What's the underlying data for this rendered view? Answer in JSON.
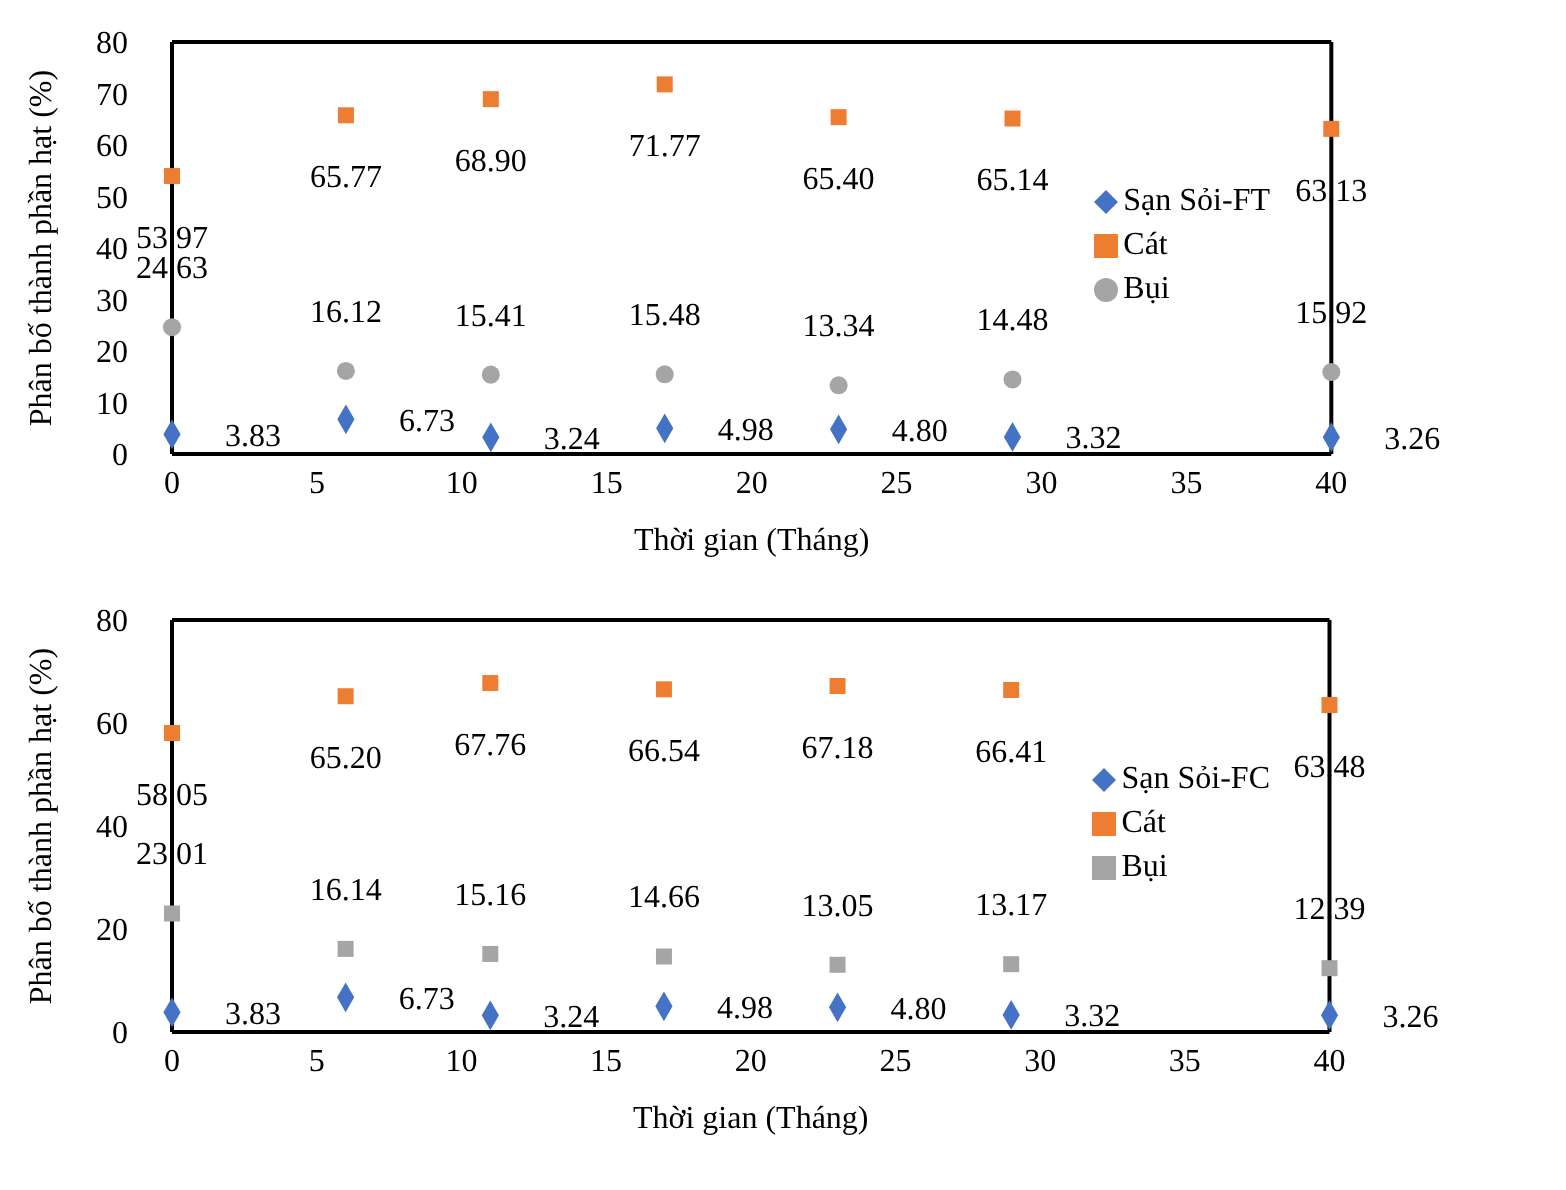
{
  "chart_data": [
    {
      "type": "scatter",
      "xlabel": "Thời gian (Tháng)",
      "ylabel": "Phân bố thành phần hạt (%)",
      "x": [
        0,
        6,
        11,
        17,
        23,
        29,
        40
      ],
      "xlim": [
        0,
        40
      ],
      "xticks": [
        0,
        5,
        10,
        15,
        20,
        25,
        30,
        35,
        40
      ],
      "ylim": [
        0,
        80
      ],
      "yticks": [
        0,
        10,
        20,
        30,
        40,
        50,
        60,
        70,
        80
      ],
      "grid": false,
      "legend": "right",
      "series": [
        {
          "name": "Sạn Sỏi-FT",
          "color": "#4472c4",
          "marker": "diamond",
          "values": [
            3.83,
            6.73,
            3.24,
            4.98,
            4.8,
            3.32,
            3.26
          ],
          "value_labels": [
            "3.83",
            "6.73",
            "3.24",
            "4.98",
            "4.80",
            "3.32",
            "3.26"
          ]
        },
        {
          "name": "Cát",
          "color": "#ed7d31",
          "marker": "square",
          "values": [
            53.97,
            65.77,
            68.9,
            71.77,
            65.4,
            65.14,
            63.13
          ],
          "value_labels": [
            "53.97",
            "65.77",
            "68.90",
            "71.77",
            "65.40",
            "65.14",
            "63.13"
          ]
        },
        {
          "name": "Bụi",
          "color": "#a5a5a5",
          "marker": "circle",
          "values": [
            24.63,
            16.12,
            15.41,
            15.48,
            13.34,
            14.48,
            15.92
          ],
          "value_labels": [
            "24.63",
            "16.12",
            "15.41",
            "15.48",
            "13.34",
            "14.48",
            "15.92"
          ]
        }
      ]
    },
    {
      "type": "scatter",
      "xlabel": "Thời gian (Tháng)",
      "ylabel": "Phân bố thành phần hạt (%)",
      "x": [
        0,
        6,
        11,
        17,
        23,
        29,
        40
      ],
      "xlim": [
        0,
        40
      ],
      "xticks": [
        0,
        5,
        10,
        15,
        20,
        25,
        30,
        35,
        40
      ],
      "ylim": [
        0,
        80
      ],
      "yticks": [
        0,
        20,
        40,
        60,
        80
      ],
      "grid": false,
      "legend": "right",
      "series": [
        {
          "name": "Sạn Sỏi-FC",
          "color": "#4472c4",
          "marker": "diamond",
          "values": [
            3.83,
            6.73,
            3.24,
            4.98,
            4.8,
            3.32,
            3.26
          ],
          "value_labels": [
            "3.83",
            "6.73",
            "3.24",
            "4.98",
            "4.80",
            "3.32",
            "3.26"
          ]
        },
        {
          "name": "Cát",
          "color": "#ed7d31",
          "marker": "square",
          "values": [
            58.05,
            65.2,
            67.76,
            66.54,
            67.18,
            66.41,
            63.48
          ],
          "value_labels": [
            "58.05",
            "65.20",
            "67.76",
            "66.54",
            "67.18",
            "66.41",
            "63.48"
          ]
        },
        {
          "name": "Bụi",
          "color": "#a5a5a5",
          "marker": "square",
          "values": [
            23.01,
            16.14,
            15.16,
            14.66,
            13.05,
            13.17,
            12.39
          ],
          "value_labels": [
            "23.01",
            "16.14",
            "15.16",
            "14.66",
            "13.05",
            "13.17",
            "12.39"
          ]
        }
      ]
    }
  ]
}
